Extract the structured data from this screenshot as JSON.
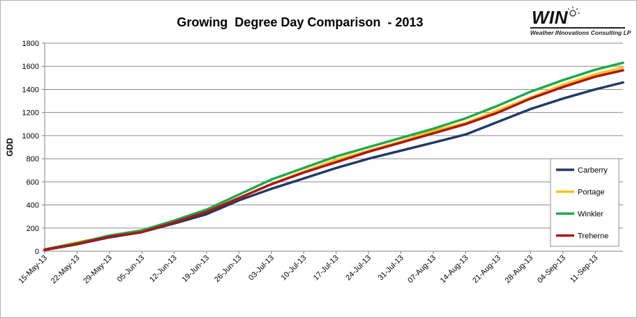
{
  "logo": {
    "name": "WIN",
    "tagline": "Weather INnovations Consulting LP"
  },
  "chart_data": {
    "type": "line",
    "title": "Growing  Degree Day Comparison  - 2013",
    "xlabel": "",
    "ylabel": "GDD",
    "ylim": [
      0,
      1800
    ],
    "yticks": [
      0,
      200,
      400,
      600,
      800,
      1000,
      1200,
      1400,
      1600,
      1800
    ],
    "x_start": "2013-05-15",
    "x_end": "2013-09-17",
    "xtick_labels": [
      "15-May-13",
      "22-May-13",
      "29-May-13",
      "05-Jun-13",
      "12-Jun-13",
      "19-Jun-13",
      "26-Jun-13",
      "03-Jul-13",
      "10-Jul-13",
      "17-Jul-13",
      "24-Jul-13",
      "31-Jul-13",
      "07-Aug-13",
      "14-Aug-13",
      "21-Aug-13",
      "28-Aug-13",
      "04-Sep-13",
      "11-Sep-13"
    ],
    "grid": true,
    "legend_position": "right",
    "x": [
      "2013-05-15",
      "2013-05-22",
      "2013-05-29",
      "2013-06-05",
      "2013-06-12",
      "2013-06-19",
      "2013-06-26",
      "2013-07-03",
      "2013-07-10",
      "2013-07-17",
      "2013-07-24",
      "2013-07-31",
      "2013-08-07",
      "2013-08-14",
      "2013-08-21",
      "2013-08-28",
      "2013-09-04",
      "2013-09-11",
      "2013-09-17"
    ],
    "series": [
      {
        "name": "Carberry",
        "color": "#1f3a68",
        "values": [
          10,
          60,
          120,
          165,
          240,
          320,
          440,
          540,
          630,
          720,
          800,
          870,
          940,
          1010,
          1120,
          1230,
          1320,
          1400,
          1460
        ]
      },
      {
        "name": "Portage",
        "color": "#f5c518",
        "values": [
          15,
          75,
          130,
          175,
          255,
          345,
          460,
          580,
          690,
          790,
          870,
          950,
          1040,
          1110,
          1220,
          1330,
          1440,
          1530,
          1590
        ]
      },
      {
        "name": "Winkler",
        "color": "#1ea84c",
        "values": [
          15,
          70,
          135,
          180,
          265,
          360,
          490,
          620,
          720,
          820,
          900,
          980,
          1060,
          1150,
          1260,
          1380,
          1480,
          1570,
          1630
        ]
      },
      {
        "name": "Treherne",
        "color": "#b01414",
        "values": [
          12,
          62,
          125,
          165,
          250,
          340,
          460,
          580,
          680,
          770,
          860,
          940,
          1020,
          1100,
          1200,
          1320,
          1420,
          1510,
          1565
        ]
      }
    ]
  }
}
